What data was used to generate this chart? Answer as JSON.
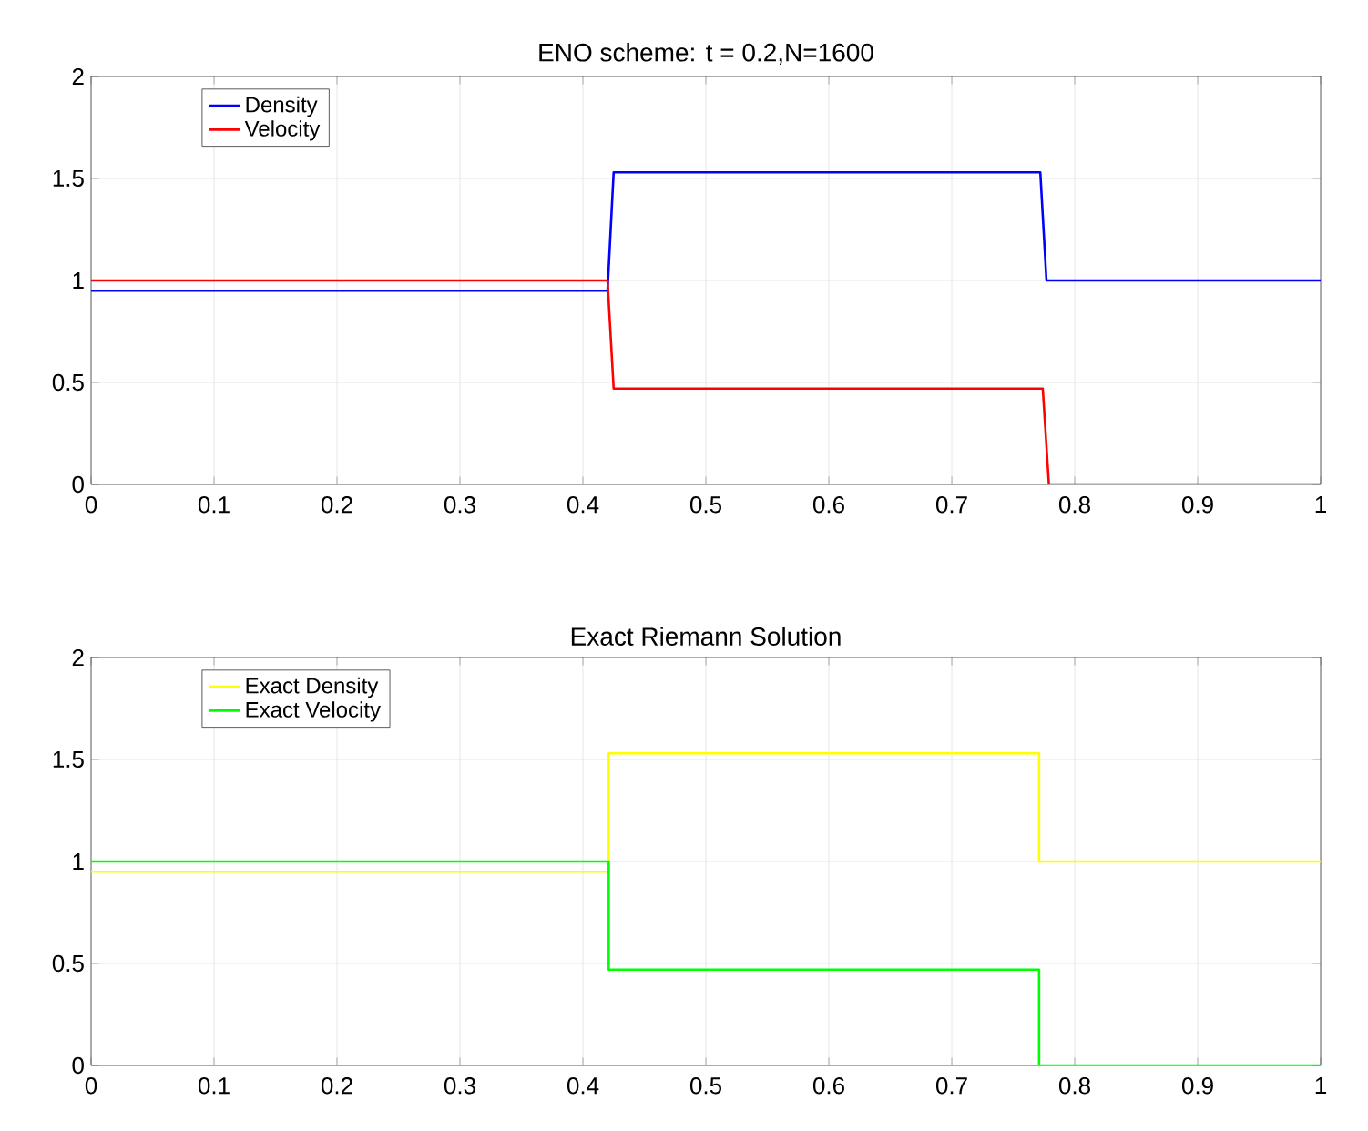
{
  "chart_data": [
    {
      "type": "line",
      "title": "ENO scheme:  t = 0.2,N=1600",
      "xlim": [
        0,
        1
      ],
      "ylim": [
        0,
        2
      ],
      "xticks": [
        0,
        0.1,
        0.2,
        0.3,
        0.4,
        0.5,
        0.6,
        0.7,
        0.8,
        0.9,
        1
      ],
      "yticks": [
        0,
        0.5,
        1,
        1.5,
        2
      ],
      "grid": true,
      "legend": "top left",
      "series": [
        {
          "name": "Density",
          "color": "#0000ff",
          "x": [
            0,
            0.42,
            0.425,
            0.772,
            0.777,
            1
          ],
          "values": [
            0.95,
            0.95,
            1.53,
            1.53,
            1.0,
            1.0
          ]
        },
        {
          "name": "Velocity",
          "color": "#ff0000",
          "x": [
            0,
            0.42,
            0.425,
            0.774,
            0.779,
            1
          ],
          "values": [
            1.0,
            1.0,
            0.47,
            0.47,
            0.0,
            0.0
          ]
        }
      ]
    },
    {
      "type": "line",
      "title": "Exact Riemann Solution",
      "xlim": [
        0,
        1
      ],
      "ylim": [
        0,
        2
      ],
      "xticks": [
        0,
        0.1,
        0.2,
        0.3,
        0.4,
        0.5,
        0.6,
        0.7,
        0.8,
        0.9,
        1
      ],
      "yticks": [
        0,
        0.5,
        1,
        1.5,
        2
      ],
      "grid": true,
      "legend": "top left",
      "series": [
        {
          "name": "Exact Density",
          "color": "#ffff00",
          "x": [
            0,
            0.421,
            0.421,
            0.771,
            0.771,
            1
          ],
          "values": [
            0.95,
            0.95,
            1.53,
            1.53,
            1.0,
            1.0
          ]
        },
        {
          "name": "Exact Velocity",
          "color": "#00ff00",
          "x": [
            0,
            0.421,
            0.421,
            0.771,
            0.771,
            1
          ],
          "values": [
            1.0,
            1.0,
            0.47,
            0.47,
            0.0,
            0.0
          ]
        }
      ]
    }
  ]
}
